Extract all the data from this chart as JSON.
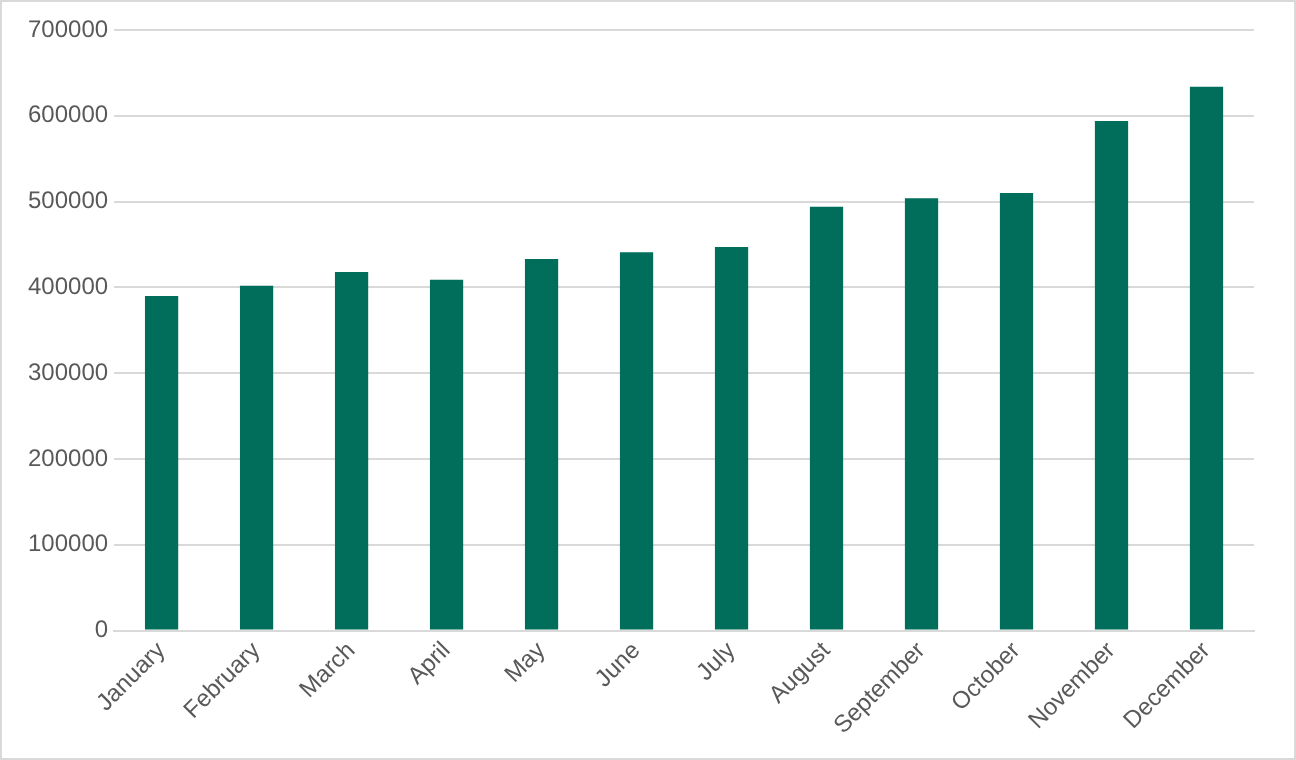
{
  "chart_data": {
    "type": "bar",
    "categories": [
      "January",
      "February",
      "March",
      "April",
      "May",
      "June",
      "July",
      "August",
      "September",
      "October",
      "November",
      "December"
    ],
    "values": [
      390000,
      402000,
      418000,
      409000,
      433000,
      441000,
      447000,
      494000,
      504000,
      510000,
      594000,
      634000
    ],
    "color": "#006e5a",
    "ylim": [
      0,
      700000
    ],
    "yticks": [
      0,
      100000,
      200000,
      300000,
      400000,
      500000,
      600000,
      700000
    ],
    "grid": "y",
    "legend": false
  }
}
